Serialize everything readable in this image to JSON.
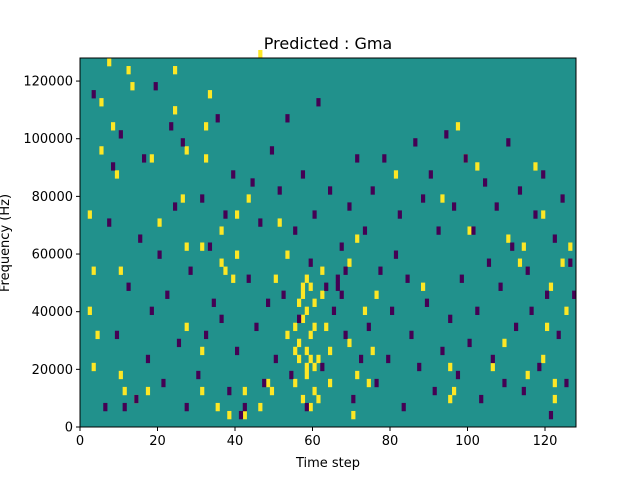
{
  "chart_data": {
    "type": "heatmap",
    "title": "Predicted : Gma",
    "xlabel": "Time step",
    "ylabel": "Frequency (Hz)",
    "xlim": [
      0,
      128
    ],
    "ylim": [
      0,
      128000
    ],
    "xticks": [
      0,
      20,
      40,
      60,
      80,
      100,
      120
    ],
    "yticks": [
      0,
      20000,
      40000,
      60000,
      80000,
      100000,
      120000
    ],
    "grid": false,
    "legend": "none",
    "colors": {
      "background": "#21918c",
      "high": "#fde725",
      "low": "#440154"
    },
    "high_cells": [
      [
        2,
        14
      ],
      [
        2,
        26
      ],
      [
        3,
        7
      ],
      [
        3,
        19
      ],
      [
        4,
        11
      ],
      [
        5,
        34
      ],
      [
        5,
        40
      ],
      [
        7,
        45
      ],
      [
        8,
        37
      ],
      [
        9,
        31
      ],
      [
        10,
        6
      ],
      [
        10,
        19
      ],
      [
        11,
        4
      ],
      [
        12,
        44
      ],
      [
        13,
        42
      ],
      [
        14,
        3
      ],
      [
        17,
        4
      ],
      [
        18,
        33
      ],
      [
        20,
        25
      ],
      [
        24,
        39
      ],
      [
        24,
        44
      ],
      [
        26,
        28
      ],
      [
        27,
        12
      ],
      [
        27,
        22
      ],
      [
        27,
        34
      ],
      [
        31,
        4
      ],
      [
        31,
        9
      ],
      [
        31,
        22
      ],
      [
        32,
        33
      ],
      [
        32,
        37
      ],
      [
        33,
        41
      ],
      [
        35,
        2
      ],
      [
        36,
        20
      ],
      [
        36,
        24
      ],
      [
        37,
        19
      ],
      [
        38,
        1
      ],
      [
        39,
        18
      ],
      [
        40,
        21
      ],
      [
        40,
        26
      ],
      [
        42,
        1
      ],
      [
        42,
        4
      ],
      [
        43,
        28
      ],
      [
        46,
        2
      ],
      [
        46,
        46
      ],
      [
        48,
        5
      ],
      [
        49,
        4
      ],
      [
        50,
        18
      ],
      [
        51,
        25
      ],
      [
        53,
        11
      ],
      [
        53,
        21
      ],
      [
        55,
        5
      ],
      [
        55,
        9
      ],
      [
        55,
        12
      ],
      [
        56,
        8
      ],
      [
        56,
        10
      ],
      [
        56,
        15
      ],
      [
        57,
        3
      ],
      [
        57,
        13
      ],
      [
        57,
        16
      ],
      [
        57,
        17
      ],
      [
        58,
        6
      ],
      [
        58,
        7
      ],
      [
        58,
        9
      ],
      [
        58,
        14
      ],
      [
        58,
        18
      ],
      [
        59,
        2
      ],
      [
        59,
        8
      ],
      [
        59,
        11
      ],
      [
        59,
        17
      ],
      [
        60,
        4
      ],
      [
        60,
        7
      ],
      [
        60,
        12
      ],
      [
        60,
        15
      ],
      [
        61,
        3
      ],
      [
        61,
        8
      ],
      [
        62,
        16
      ],
      [
        62,
        19
      ],
      [
        63,
        12
      ],
      [
        64,
        5
      ],
      [
        64,
        9
      ],
      [
        69,
        10
      ],
      [
        69,
        20
      ],
      [
        70,
        1
      ],
      [
        71,
        6
      ],
      [
        71,
        23
      ],
      [
        73,
        14
      ],
      [
        74,
        5
      ],
      [
        75,
        9
      ],
      [
        76,
        16
      ],
      [
        81,
        31
      ],
      [
        88,
        17
      ],
      [
        93,
        28
      ],
      [
        95,
        3
      ],
      [
        95,
        7
      ],
      [
        96,
        4
      ],
      [
        97,
        37
      ],
      [
        99,
        33
      ],
      [
        100,
        24
      ],
      [
        102,
        32
      ],
      [
        106,
        7
      ],
      [
        109,
        10
      ],
      [
        110,
        23
      ],
      [
        113,
        20
      ],
      [
        114,
        22
      ],
      [
        115,
        6
      ],
      [
        117,
        32
      ],
      [
        119,
        8
      ],
      [
        119,
        26
      ],
      [
        120,
        12
      ],
      [
        121,
        17
      ],
      [
        122,
        3
      ],
      [
        122,
        5
      ],
      [
        124,
        20
      ],
      [
        125,
        14
      ],
      [
        126,
        22
      ]
    ],
    "low_cells": [
      [
        3,
        41
      ],
      [
        6,
        2
      ],
      [
        7,
        25
      ],
      [
        8,
        32
      ],
      [
        9,
        11
      ],
      [
        10,
        36
      ],
      [
        11,
        2
      ],
      [
        12,
        17
      ],
      [
        14,
        3
      ],
      [
        15,
        23
      ],
      [
        16,
        33
      ],
      [
        17,
        8
      ],
      [
        18,
        14
      ],
      [
        19,
        42
      ],
      [
        20,
        21
      ],
      [
        21,
        5
      ],
      [
        22,
        16
      ],
      [
        23,
        37
      ],
      [
        24,
        27
      ],
      [
        25,
        10
      ],
      [
        26,
        35
      ],
      [
        27,
        2
      ],
      [
        28,
        19
      ],
      [
        30,
        6
      ],
      [
        31,
        28
      ],
      [
        32,
        11
      ],
      [
        33,
        22
      ],
      [
        34,
        15
      ],
      [
        35,
        38
      ],
      [
        36,
        13
      ],
      [
        37,
        26
      ],
      [
        38,
        4
      ],
      [
        39,
        31
      ],
      [
        40,
        9
      ],
      [
        41,
        1
      ],
      [
        42,
        2
      ],
      [
        43,
        18
      ],
      [
        44,
        30
      ],
      [
        45,
        12
      ],
      [
        46,
        25
      ],
      [
        47,
        5
      ],
      [
        48,
        15
      ],
      [
        49,
        34
      ],
      [
        50,
        8
      ],
      [
        51,
        29
      ],
      [
        52,
        16
      ],
      [
        53,
        38
      ],
      [
        54,
        6
      ],
      [
        55,
        24
      ],
      [
        56,
        13
      ],
      [
        57,
        31
      ],
      [
        58,
        2
      ],
      [
        59,
        20
      ],
      [
        60,
        26
      ],
      [
        61,
        40
      ],
      [
        62,
        7
      ],
      [
        63,
        17
      ],
      [
        64,
        29
      ],
      [
        65,
        14
      ],
      [
        66,
        18
      ],
      [
        66,
        17
      ],
      [
        67,
        22
      ],
      [
        67,
        16
      ],
      [
        68,
        11
      ],
      [
        68,
        19
      ],
      [
        69,
        27
      ],
      [
        70,
        3
      ],
      [
        71,
        33
      ],
      [
        72,
        8
      ],
      [
        73,
        24
      ],
      [
        74,
        12
      ],
      [
        75,
        29
      ],
      [
        76,
        5
      ],
      [
        77,
        19
      ],
      [
        78,
        33
      ],
      [
        79,
        8
      ],
      [
        80,
        14
      ],
      [
        81,
        21
      ],
      [
        82,
        26
      ],
      [
        83,
        2
      ],
      [
        84,
        18
      ],
      [
        85,
        11
      ],
      [
        86,
        35
      ],
      [
        87,
        7
      ],
      [
        88,
        28
      ],
      [
        89,
        15
      ],
      [
        90,
        31
      ],
      [
        91,
        4
      ],
      [
        92,
        24
      ],
      [
        93,
        9
      ],
      [
        94,
        36
      ],
      [
        95,
        13
      ],
      [
        96,
        27
      ],
      [
        97,
        6
      ],
      [
        98,
        18
      ],
      [
        99,
        33
      ],
      [
        100,
        10
      ],
      [
        101,
        24
      ],
      [
        102,
        14
      ],
      [
        103,
        3
      ],
      [
        104,
        30
      ],
      [
        105,
        20
      ],
      [
        106,
        8
      ],
      [
        107,
        27
      ],
      [
        108,
        17
      ],
      [
        109,
        5
      ],
      [
        110,
        35
      ],
      [
        111,
        22
      ],
      [
        112,
        12
      ],
      [
        113,
        29
      ],
      [
        114,
        4
      ],
      [
        115,
        19
      ],
      [
        116,
        14
      ],
      [
        117,
        26
      ],
      [
        118,
        7
      ],
      [
        119,
        31
      ],
      [
        120,
        16
      ],
      [
        121,
        1
      ],
      [
        122,
        23
      ],
      [
        123,
        11
      ],
      [
        124,
        28
      ],
      [
        125,
        5
      ],
      [
        126,
        20
      ],
      [
        127,
        16
      ]
    ]
  }
}
